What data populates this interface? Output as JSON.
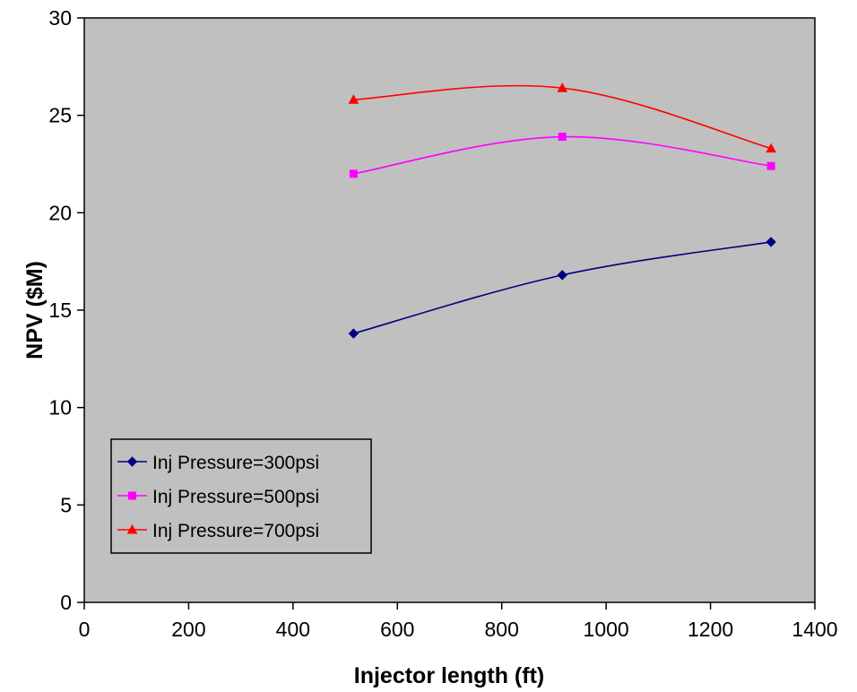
{
  "chart_data": {
    "type": "line",
    "title": "",
    "xlabel": "Injector length (ft)",
    "ylabel": "NPV ($M)",
    "xlim": [
      0,
      1400
    ],
    "ylim": [
      0,
      30
    ],
    "x_ticks": [
      "0",
      "200",
      "400",
      "600",
      "800",
      "1000",
      "1200",
      "1400"
    ],
    "y_ticks": [
      "0",
      "5",
      "10",
      "15",
      "20",
      "25",
      "30"
    ],
    "grid": false,
    "legend_position": "bottom-left",
    "plot_background": "#c0c0c0",
    "series": [
      {
        "name": "Inj Pressure=300psi",
        "color": "#000080",
        "marker": "diamond",
        "x": [
          516,
          916,
          1316
        ],
        "y": [
          13.8,
          16.8,
          18.5
        ]
      },
      {
        "name": "Inj Pressure=500psi",
        "color": "#ff00ff",
        "marker": "square",
        "x": [
          516,
          916,
          1316
        ],
        "y": [
          22.0,
          23.9,
          22.4
        ]
      },
      {
        "name": "Inj Pressure=700psi",
        "color": "#ff0000",
        "marker": "triangle",
        "x": [
          516,
          916,
          1316
        ],
        "y": [
          25.8,
          26.4,
          23.3
        ]
      }
    ]
  }
}
